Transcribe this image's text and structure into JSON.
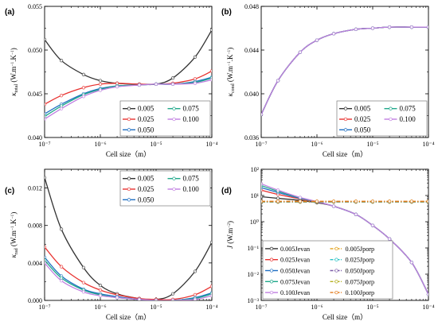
{
  "chart_data": [
    {
      "panel": "(a)",
      "type": "line",
      "x_scale": "log",
      "xlim": [
        1e-07,
        0.0001
      ],
      "ylim": [
        0.04,
        0.055
      ],
      "y_ticks": [
        "0.040",
        "0.045",
        "0.050",
        "0.055"
      ],
      "x_ticks": [
        "10⁻⁷",
        "10⁻⁶",
        "10⁻⁵",
        "10⁻⁴"
      ],
      "xlabel": "Cell size（m）",
      "ylabel_symbol": "κ",
      "ylabel_sub": "total",
      "ylabel_units": " (W.m",
      "ylabel_sup1": "−1",
      "ylabel_mid": ".K",
      "ylabel_sup2": "−1",
      "ylabel_end": ")",
      "legend_position": "bottom-right",
      "x": [
        1e-07,
        2e-07,
        5e-07,
        1e-06,
        2e-06,
        5e-06,
        1e-05,
        2e-05,
        5e-05,
        0.0001
      ],
      "series": [
        {
          "name": "0.005",
          "color": "#333333",
          "values": [
            0.0512,
            0.0488,
            0.0472,
            0.0465,
            0.0462,
            0.0461,
            0.0461,
            0.0468,
            0.0492,
            0.0523
          ]
        },
        {
          "name": "0.025",
          "color": "#e8312f",
          "values": [
            0.0438,
            0.0448,
            0.0457,
            0.0461,
            0.0462,
            0.0461,
            0.0461,
            0.0462,
            0.0467,
            0.0476
          ]
        },
        {
          "name": "0.050",
          "color": "#1f6fc2",
          "values": [
            0.0427,
            0.0438,
            0.045,
            0.0456,
            0.0459,
            0.046,
            0.0461,
            0.0461,
            0.0464,
            0.0469
          ]
        },
        {
          "name": "0.075",
          "color": "#1fa88a",
          "values": [
            0.0424,
            0.0436,
            0.0449,
            0.0455,
            0.0459,
            0.046,
            0.0461,
            0.0461,
            0.0463,
            0.0468
          ]
        },
        {
          "name": "0.100",
          "color": "#c07ee0",
          "values": [
            0.0421,
            0.0433,
            0.0447,
            0.0454,
            0.0458,
            0.046,
            0.0461,
            0.0461,
            0.0462,
            0.0466
          ]
        }
      ]
    },
    {
      "panel": "(b)",
      "type": "line",
      "x_scale": "log",
      "xlim": [
        1e-07,
        0.0001
      ],
      "ylim": [
        0.036,
        0.048
      ],
      "y_ticks": [
        "0.036",
        "0.040",
        "0.044",
        "0.048"
      ],
      "x_ticks": [
        "10⁻⁷",
        "10⁻⁶",
        "10⁻⁵",
        "10⁻⁴"
      ],
      "xlabel": "Cell size（m）",
      "ylabel_symbol": "κ",
      "ylabel_sub": "cond",
      "ylabel_units": " (W.m",
      "ylabel_sup1": "−1",
      "ylabel_mid": ".K",
      "ylabel_sup2": "−1",
      "ylabel_end": ")",
      "legend_position": "bottom-right",
      "x": [
        1e-07,
        2e-07,
        5e-07,
        1e-06,
        2e-06,
        5e-06,
        1e-05,
        2e-05,
        5e-05,
        0.0001
      ],
      "series": [
        {
          "name": "0.005",
          "color": "#333333",
          "values": [
            0.0381,
            0.0412,
            0.0438,
            0.0449,
            0.0455,
            0.0459,
            0.046,
            0.0461,
            0.0461,
            0.0461
          ]
        },
        {
          "name": "0.025",
          "color": "#e8312f",
          "values": [
            0.0381,
            0.0412,
            0.0438,
            0.0449,
            0.0455,
            0.0459,
            0.046,
            0.0461,
            0.0461,
            0.0461
          ]
        },
        {
          "name": "0.050",
          "color": "#1f6fc2",
          "values": [
            0.0381,
            0.0412,
            0.0438,
            0.0449,
            0.0455,
            0.0459,
            0.046,
            0.0461,
            0.0461,
            0.0461
          ]
        },
        {
          "name": "0.075",
          "color": "#1fa88a",
          "values": [
            0.0381,
            0.0412,
            0.0438,
            0.0449,
            0.0455,
            0.0459,
            0.046,
            0.0461,
            0.0461,
            0.0461
          ]
        },
        {
          "name": "0.100",
          "color": "#c07ee0",
          "values": [
            0.0381,
            0.0412,
            0.0438,
            0.0449,
            0.0455,
            0.0459,
            0.046,
            0.0461,
            0.0461,
            0.0461
          ]
        }
      ]
    },
    {
      "panel": "(c)",
      "type": "line",
      "x_scale": "log",
      "xlim": [
        1e-07,
        0.0001
      ],
      "ylim": [
        0.0,
        0.014
      ],
      "y_ticks": [
        "0.000",
        "0.004",
        "0.008",
        "0.012"
      ],
      "y_tick_values": [
        0.0,
        0.004,
        0.008,
        0.012
      ],
      "x_ticks": [
        "10⁻⁷",
        "10⁻⁶",
        "10⁻⁵",
        "10⁻⁴"
      ],
      "xlabel": "Cell size（m）",
      "ylabel_symbol": "κ",
      "ylabel_sub": "rad",
      "ylabel_units": " (W.m",
      "ylabel_sup1": "−1",
      "ylabel_mid": ".K",
      "ylabel_sup2": "−1",
      "ylabel_end": ")",
      "legend_position": "top-right",
      "x": [
        1e-07,
        2e-07,
        5e-07,
        1e-06,
        2e-06,
        5e-06,
        1e-05,
        2e-05,
        5e-05,
        0.0001
      ],
      "series": [
        {
          "name": "0.005",
          "color": "#333333",
          "values": [
            0.0131,
            0.0076,
            0.0035,
            0.0016,
            0.0007,
            0.0002,
            0.0001,
            0.0007,
            0.0031,
            0.0062
          ]
        },
        {
          "name": "0.025",
          "color": "#e8312f",
          "values": [
            0.0057,
            0.0036,
            0.0019,
            0.0011,
            0.0006,
            0.0002,
            0.0001,
            0.0001,
            0.0006,
            0.0015
          ]
        },
        {
          "name": "0.050",
          "color": "#1f6fc2",
          "values": [
            0.0046,
            0.0026,
            0.0012,
            0.0007,
            0.0004,
            0.0001,
            0.0,
            0.0,
            0.0003,
            0.0008
          ]
        },
        {
          "name": "0.075",
          "color": "#1fa88a",
          "values": [
            0.0043,
            0.0024,
            0.0011,
            0.0006,
            0.0003,
            0.0001,
            0.0,
            0.0,
            0.0002,
            0.0007
          ]
        },
        {
          "name": "0.100",
          "color": "#c07ee0",
          "values": [
            0.004,
            0.0021,
            0.0009,
            0.0005,
            0.0003,
            0.0001,
            0.0,
            0.0,
            0.0001,
            0.0005
          ]
        }
      ]
    },
    {
      "panel": "(d)",
      "type": "line",
      "x_scale": "log",
      "y_scale": "log",
      "xlim": [
        1e-07,
        0.0001
      ],
      "ylim": [
        0.001,
        100.0
      ],
      "y_ticks": [
        "10⁻³",
        "10⁻²",
        "10⁻¹",
        "10⁰",
        "10¹",
        "10²"
      ],
      "x_ticks": [
        "10⁻⁷",
        "10⁻⁶",
        "10⁻⁵",
        "10⁻⁴"
      ],
      "xlabel": "Cell size（m）",
      "ylabel_symbol": "J",
      "ylabel_units": " (W.m",
      "ylabel_sup1": "−2",
      "ylabel_end": ")",
      "legend_position": "bottom-left",
      "x": [
        1e-07,
        2e-07,
        5e-07,
        1e-06,
        2e-06,
        5e-06,
        1e-05,
        2e-05,
        5e-05,
        0.0001
      ],
      "series": [
        {
          "name": "0.005Jevan",
          "color": "#333333",
          "style": "solid",
          "values": [
            9.0,
            7.8,
            6.5,
            5.3,
            3.9,
            1.9,
            0.72,
            0.22,
            0.028,
            0.0017
          ]
        },
        {
          "name": "0.025Jevan",
          "color": "#e8312f",
          "style": "solid",
          "values": [
            16.0,
            11.0,
            7.4,
            5.6,
            3.9,
            1.9,
            0.72,
            0.22,
            0.028,
            0.0017
          ]
        },
        {
          "name": "0.050Jevan",
          "color": "#1f6fc2",
          "style": "solid",
          "values": [
            20.0,
            13.0,
            7.8,
            5.7,
            3.9,
            1.9,
            0.72,
            0.22,
            0.028,
            0.0017
          ]
        },
        {
          "name": "0.075Jevan",
          "color": "#1fa88a",
          "style": "solid",
          "values": [
            24.0,
            14.5,
            8.1,
            5.8,
            3.9,
            1.9,
            0.72,
            0.22,
            0.028,
            0.0017
          ]
        },
        {
          "name": "0.100Jevan",
          "color": "#c07ee0",
          "style": "solid",
          "values": [
            28.0,
            16.0,
            8.4,
            5.9,
            3.9,
            1.9,
            0.72,
            0.22,
            0.028,
            0.0017
          ]
        },
        {
          "name": "0.005Jporp",
          "color": "#e3a21a",
          "style": "dashed",
          "values": [
            5.6,
            5.6,
            5.6,
            5.6,
            5.6,
            5.6,
            5.6,
            5.6,
            5.6,
            5.6
          ]
        },
        {
          "name": "0.025Jporp",
          "color": "#29c3c6",
          "style": "dashed",
          "values": [
            5.7,
            5.7,
            5.7,
            5.7,
            5.7,
            5.7,
            5.7,
            5.7,
            5.7,
            5.7
          ]
        },
        {
          "name": "0.050Jporp",
          "color": "#7d5da8",
          "style": "dashed",
          "values": [
            5.8,
            5.8,
            5.8,
            5.8,
            5.8,
            5.8,
            5.8,
            5.8,
            5.8,
            5.8
          ]
        },
        {
          "name": "0.075Jporp",
          "color": "#b5b021",
          "style": "dashed",
          "values": [
            5.9,
            5.9,
            5.9,
            5.9,
            5.9,
            5.9,
            5.9,
            5.9,
            5.9,
            5.9
          ]
        },
        {
          "name": "0.100Jporp",
          "color": "#e37b1c",
          "style": "dashed",
          "values": [
            6.0,
            6.0,
            6.0,
            6.0,
            6.0,
            6.0,
            6.0,
            6.0,
            6.0,
            6.0
          ]
        }
      ]
    }
  ]
}
